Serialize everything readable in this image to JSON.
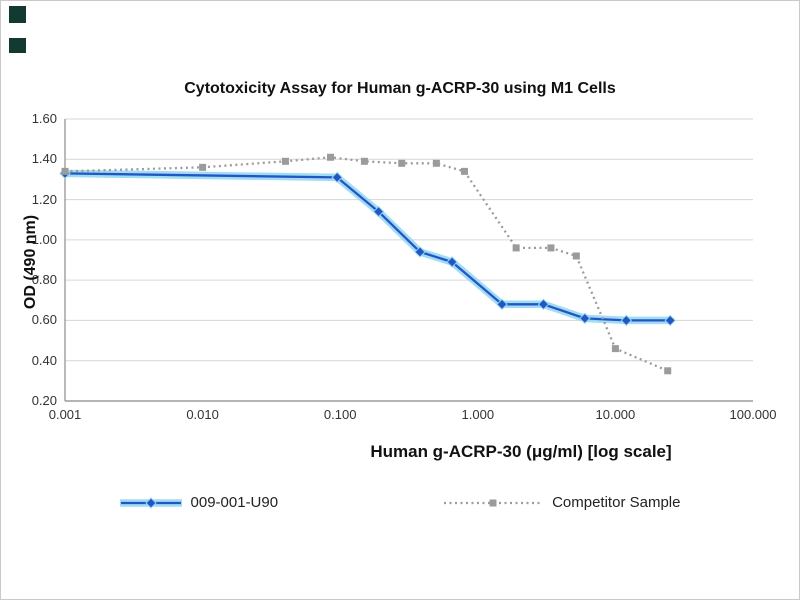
{
  "page": {
    "background": "#ffffff",
    "border_color": "#c9c9c9"
  },
  "decor": {
    "corner_square_color": "#123a31"
  },
  "chart_data": {
    "type": "line",
    "title": "Cytotoxicity Assay for Human g-ACRP-30 using M1 Cells",
    "xlabel": "Human g-ACRP-30 (μg/ml) [log scale]",
    "ylabel": "OD (490 nm)",
    "x_scale": "log",
    "xlim": [
      0.001,
      100
    ],
    "ylim": [
      0.2,
      1.6
    ],
    "x_ticks": [
      0.001,
      0.01,
      0.1,
      1,
      10,
      100
    ],
    "x_tick_labels": [
      "0.001",
      "0.010",
      "0.100",
      "1.000",
      "10.000",
      "100.000"
    ],
    "y_ticks": [
      0.2,
      0.4,
      0.6,
      0.8,
      1.0,
      1.2,
      1.4,
      1.6
    ],
    "y_tick_labels": [
      "0.20",
      "0.40",
      "0.60",
      "0.80",
      "1.00",
      "1.20",
      "1.40",
      "1.60"
    ],
    "grid": "horizontal",
    "grid_color": "#d6d6d6",
    "axis_color": "#9c9c9c",
    "legend_position": "bottom",
    "series": [
      {
        "name": "009-001-U90",
        "color": "#2356c4",
        "glow_color": "#8fd6f2",
        "marker": "diamond",
        "line_style": "solid",
        "points": [
          [
            0.001,
            1.33
          ],
          [
            0.095,
            1.31
          ],
          [
            0.19,
            1.14
          ],
          [
            0.38,
            0.94
          ],
          [
            0.65,
            0.89
          ],
          [
            1.5,
            0.68
          ],
          [
            3.0,
            0.68
          ],
          [
            6.0,
            0.61
          ],
          [
            12,
            0.6
          ],
          [
            25,
            0.6
          ]
        ]
      },
      {
        "name": "Competitor Sample",
        "color": "#9b9b9b",
        "marker": "square",
        "line_style": "dotted",
        "points": [
          [
            0.001,
            1.34
          ],
          [
            0.01,
            1.36
          ],
          [
            0.04,
            1.39
          ],
          [
            0.085,
            1.41
          ],
          [
            0.15,
            1.39
          ],
          [
            0.28,
            1.38
          ],
          [
            0.5,
            1.38
          ],
          [
            0.8,
            1.34
          ],
          [
            1.9,
            0.96
          ],
          [
            3.4,
            0.96
          ],
          [
            5.2,
            0.92
          ],
          [
            10,
            0.46
          ],
          [
            24,
            0.35
          ]
        ]
      }
    ]
  }
}
